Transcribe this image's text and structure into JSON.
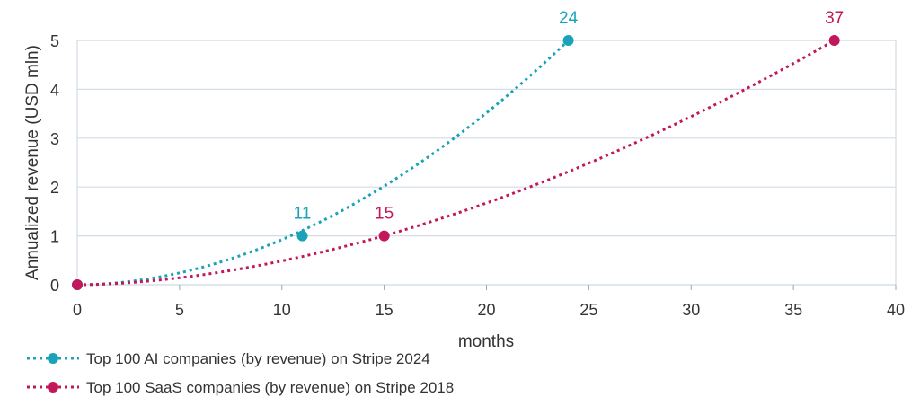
{
  "chart_data": {
    "type": "line",
    "title": "",
    "xlabel": "months",
    "ylabel": "Annualized revenue (USD mln)",
    "xlim": [
      0,
      40
    ],
    "ylim": [
      0,
      5
    ],
    "x_ticks": [
      "0",
      "5",
      "10",
      "15",
      "20",
      "25",
      "30",
      "35",
      "40"
    ],
    "y_ticks": [
      "0",
      "1",
      "2",
      "3",
      "4",
      "5"
    ],
    "grid": true,
    "legend_position": "bottom-left",
    "series": [
      {
        "name": "Top 100 AI companies (by revenue) on Stripe 2024",
        "color": "#1aa3b8",
        "marker_x": [
          0,
          11,
          24
        ],
        "marker_y": [
          0,
          1,
          5
        ],
        "marker_labels": [
          "",
          "11",
          "24"
        ],
        "curve_exponent": 1.93
      },
      {
        "name": "Top 100 SaaS companies (by revenue) on Stripe 2018",
        "color": "#c2185b",
        "marker_x": [
          0,
          15,
          37
        ],
        "marker_y": [
          0,
          1,
          5
        ],
        "marker_labels": [
          "",
          "15",
          "37"
        ],
        "curve_exponent": 1.78
      }
    ]
  }
}
